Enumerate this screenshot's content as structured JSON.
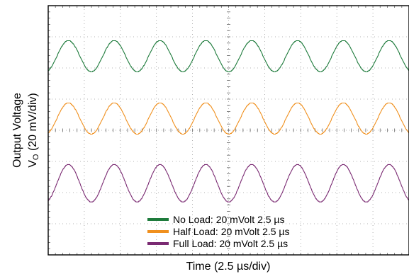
{
  "chart_data": {
    "type": "line",
    "title": "",
    "xlabel": "Time (2.5 µs/div)",
    "ylabel_line1": "Output Voltage",
    "ylabel_line2_main": "V",
    "ylabel_line2_sub": "O",
    "ylabel_line2_rest": " (20 mV/div)",
    "x_divisions": 10,
    "y_divisions": 8,
    "x_range_div": [
      0,
      10
    ],
    "y_range_div": [
      0,
      8
    ],
    "grid": "dotted",
    "legend_position": "bottom-center",
    "series": [
      {
        "name": "No Load: 20 mVolt 2.5 µs",
        "color": "#1e7b3c",
        "period_div": 1.27,
        "amplitude_div": 0.5,
        "offset_div": 6.38,
        "phase_div": 0.56
      },
      {
        "name": "Half Load: 20 mVolt 2.5 µs",
        "color": "#f0901e",
        "period_div": 1.27,
        "amplitude_div": 0.5,
        "offset_div": 4.38,
        "phase_div": 0.56
      },
      {
        "name": "Full Load: 20 mVolt 2.5 µs",
        "color": "#7a2a72",
        "period_div": 1.27,
        "amplitude_div": 0.6,
        "offset_div": 2.3,
        "phase_div": 0.56
      }
    ]
  }
}
